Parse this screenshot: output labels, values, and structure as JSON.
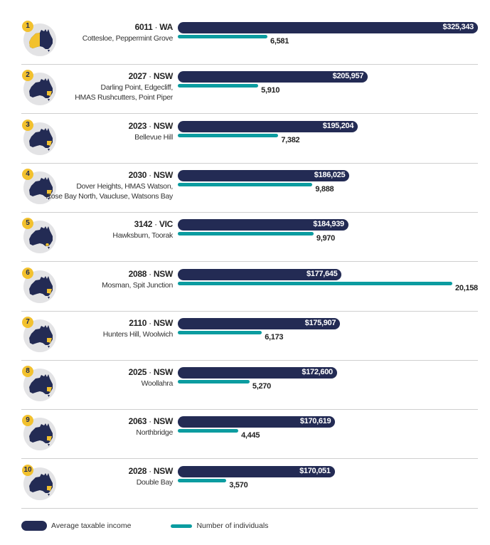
{
  "chart_data": {
    "type": "bar",
    "orientation": "horizontal",
    "colors": {
      "income": "#232b54",
      "individuals": "#0b9ca0",
      "highlight": "#f2c12e"
    },
    "legend": {
      "position": "bottom-left",
      "items": [
        "Average taxable income",
        "Number of individuals"
      ]
    },
    "rows": [
      {
        "rank": "1",
        "postcode": "6011",
        "state": "WA",
        "suburbs": [
          "Cottesloe, Peppermint Grove"
        ],
        "income": 325343,
        "income_label": "$325,343",
        "individuals": 6581,
        "individuals_label": "6,581"
      },
      {
        "rank": "2",
        "postcode": "2027",
        "state": "NSW",
        "suburbs": [
          "Darling Point, Edgecliff,",
          "HMAS Rushcutters, Point Piper"
        ],
        "income": 205957,
        "income_label": "$205,957",
        "individuals": 5910,
        "individuals_label": "5,910"
      },
      {
        "rank": "3",
        "postcode": "2023",
        "state": "NSW",
        "suburbs": [
          "Bellevue Hill"
        ],
        "income": 195204,
        "income_label": "$195,204",
        "individuals": 7382,
        "individuals_label": "7,382"
      },
      {
        "rank": "4",
        "postcode": "2030",
        "state": "NSW",
        "suburbs": [
          "Dover Heights, HMAS Watson,",
          "Rose Bay North, Vaucluse, Watsons Bay"
        ],
        "income": 186025,
        "income_label": "$186,025",
        "individuals": 9888,
        "individuals_label": "9,888"
      },
      {
        "rank": "5",
        "postcode": "3142",
        "state": "VIC",
        "suburbs": [
          "Hawksburn, Toorak"
        ],
        "income": 184939,
        "income_label": "$184,939",
        "individuals": 9970,
        "individuals_label": "9,970"
      },
      {
        "rank": "6",
        "postcode": "2088",
        "state": "NSW",
        "suburbs": [
          "Mosman, Spit Junction"
        ],
        "income": 177645,
        "income_label": "$177,645",
        "individuals": 20158,
        "individuals_label": "20,158"
      },
      {
        "rank": "7",
        "postcode": "2110",
        "state": "NSW",
        "suburbs": [
          "Hunters Hill, Woolwich"
        ],
        "income": 175907,
        "income_label": "$175,907",
        "individuals": 6173,
        "individuals_label": "6,173"
      },
      {
        "rank": "8",
        "postcode": "2025",
        "state": "NSW",
        "suburbs": [
          "Woollahra"
        ],
        "income": 172600,
        "income_label": "$172,600",
        "individuals": 5270,
        "individuals_label": "5,270"
      },
      {
        "rank": "9",
        "postcode": "2063",
        "state": "NSW",
        "suburbs": [
          "Northbridge"
        ],
        "income": 170619,
        "income_label": "$170,619",
        "individuals": 4445,
        "individuals_label": "4,445"
      },
      {
        "rank": "10",
        "postcode": "2028",
        "state": "NSW",
        "suburbs": [
          "Double Bay"
        ],
        "income": 170051,
        "income_label": "$170,051",
        "individuals": 3570,
        "individuals_label": "3,570"
      }
    ]
  }
}
